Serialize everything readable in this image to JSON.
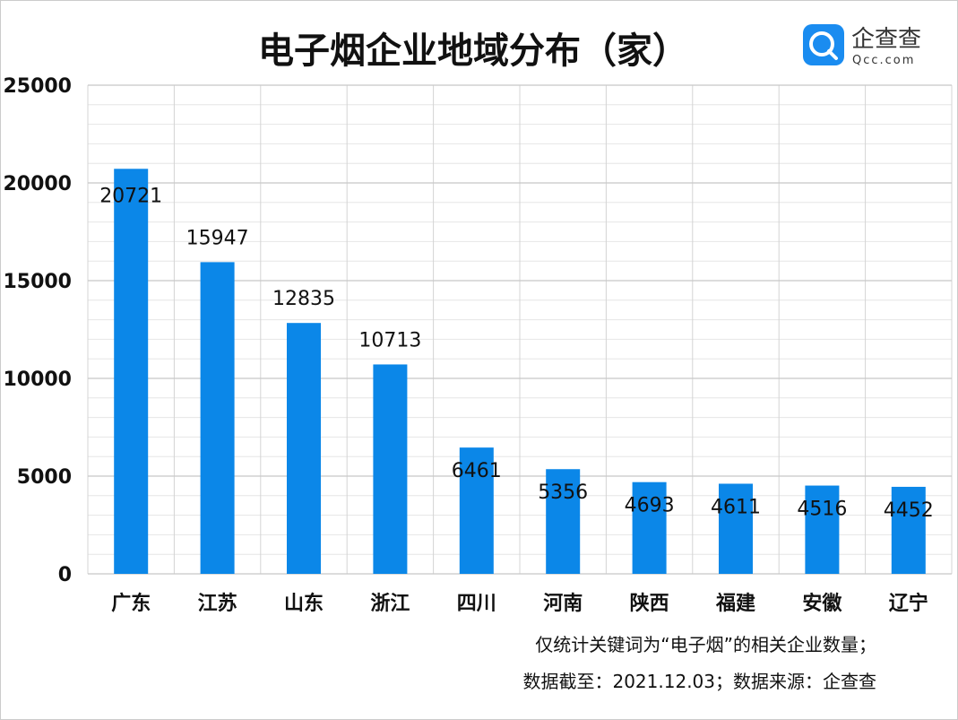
{
  "chart_data": {
    "type": "bar",
    "title": "电子烟企业地域分布（家）",
    "categories": [
      "广东",
      "江苏",
      "山东",
      "浙江",
      "四川",
      "河南",
      "陕西",
      "福建",
      "安徽",
      "辽宁"
    ],
    "values": [
      20721,
      15947,
      12835,
      10713,
      6461,
      5356,
      4693,
      4611,
      4516,
      4452
    ],
    "data_labels": [
      "20721",
      "15947",
      "12835",
      "10713",
      "6461",
      "5356",
      "4693",
      "4611",
      "4516",
      "4452"
    ],
    "ylim": [
      0,
      25000
    ],
    "yticks": [
      0,
      5000,
      10000,
      15000,
      20000,
      25000
    ],
    "ytick_labels": [
      "0",
      "5000",
      "10000",
      "15000",
      "20000",
      "25000"
    ],
    "xlabel": "",
    "ylabel": "",
    "grid": true,
    "bar_color": "#0b87e8"
  },
  "notes": {
    "line1": "仅统计关键词为“电子烟”的相关企业数量；",
    "line2": "数据截至：2021.12.03；数据来源：企查查"
  },
  "logo": {
    "name": "企查查",
    "domain": "Qcc.com",
    "color": "#1a8cf0"
  }
}
